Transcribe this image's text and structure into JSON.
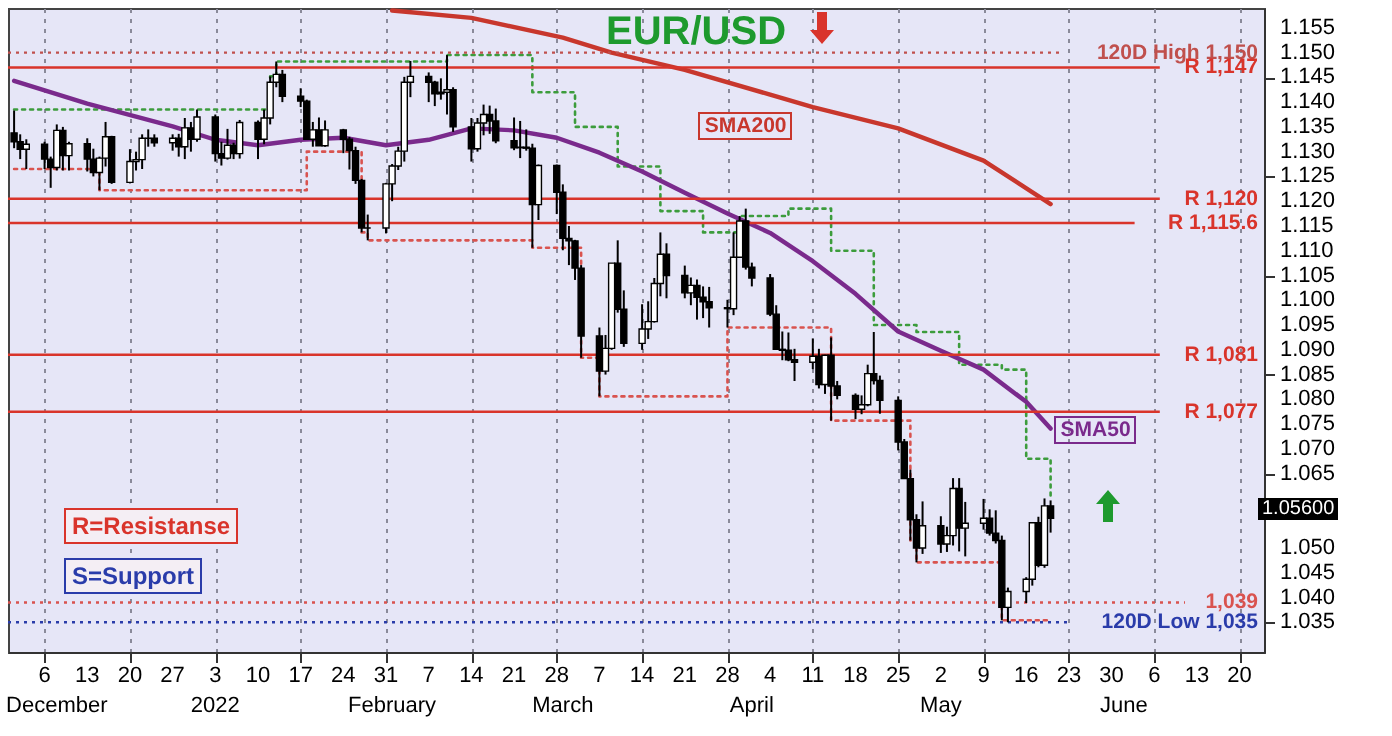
{
  "chart_data": {
    "type": "candlestick",
    "title": "EUR/USD",
    "x": [
      "2021-12-01",
      "2021-12-02",
      "2021-12-03",
      "2021-12-06",
      "2021-12-07",
      "2021-12-08",
      "2021-12-09",
      "2021-12-10",
      "2021-12-13",
      "2021-12-14",
      "2021-12-15",
      "2021-12-16",
      "2021-12-17",
      "2021-12-20",
      "2021-12-21",
      "2021-12-22",
      "2021-12-23",
      "2021-12-24",
      "2021-12-27",
      "2021-12-28",
      "2021-12-29",
      "2021-12-30",
      "2021-12-31",
      "2022-01-03",
      "2022-01-04",
      "2022-01-05",
      "2022-01-06",
      "2022-01-07",
      "2022-01-10",
      "2022-01-11",
      "2022-01-12",
      "2022-01-13",
      "2022-01-14",
      "2022-01-17",
      "2022-01-18",
      "2022-01-19",
      "2022-01-20",
      "2022-01-21",
      "2022-01-24",
      "2022-01-25",
      "2022-01-26",
      "2022-01-27",
      "2022-01-28",
      "2022-01-31",
      "2022-02-01",
      "2022-02-02",
      "2022-02-03",
      "2022-02-04",
      "2022-02-07",
      "2022-02-08",
      "2022-02-09",
      "2022-02-10",
      "2022-02-11",
      "2022-02-14",
      "2022-02-15",
      "2022-02-16",
      "2022-02-17",
      "2022-02-18",
      "2022-02-21",
      "2022-02-22",
      "2022-02-23",
      "2022-02-24",
      "2022-02-25",
      "2022-02-28",
      "2022-03-01",
      "2022-03-02",
      "2022-03-03",
      "2022-03-04",
      "2022-03-07",
      "2022-03-08",
      "2022-03-09",
      "2022-03-10",
      "2022-03-11",
      "2022-03-14",
      "2022-03-15",
      "2022-03-16",
      "2022-03-17",
      "2022-03-18",
      "2022-03-21",
      "2022-03-22",
      "2022-03-23",
      "2022-03-24",
      "2022-03-25",
      "2022-03-28",
      "2022-03-29",
      "2022-03-30",
      "2022-03-31",
      "2022-04-01",
      "2022-04-04",
      "2022-04-05",
      "2022-04-06",
      "2022-04-07",
      "2022-04-08",
      "2022-04-11",
      "2022-04-12",
      "2022-04-13",
      "2022-04-14",
      "2022-04-15",
      "2022-04-18",
      "2022-04-19",
      "2022-04-20",
      "2022-04-21",
      "2022-04-22",
      "2022-04-25",
      "2022-04-26",
      "2022-04-27",
      "2022-04-28",
      "2022-04-29",
      "2022-05-02",
      "2022-05-03",
      "2022-05-04",
      "2022-05-05",
      "2022-05-06",
      "2022-05-09",
      "2022-05-10",
      "2022-05-11",
      "2022-05-12",
      "2022-05-13",
      "2022-05-16",
      "2022-05-17",
      "2022-05-18",
      "2022-05-19",
      "2022-05-20"
    ],
    "ohlc": [
      [
        1.1338,
        1.1383,
        1.1307,
        1.132
      ],
      [
        1.132,
        1.1335,
        1.1285,
        1.1305
      ],
      [
        1.1305,
        1.1325,
        1.1265,
        1.1315
      ],
      [
        1.1315,
        1.132,
        1.1265,
        1.1285
      ],
      [
        1.1285,
        1.129,
        1.1227,
        1.1268
      ],
      [
        1.1268,
        1.1355,
        1.1262,
        1.1343
      ],
      [
        1.1343,
        1.135,
        1.1262,
        1.1292
      ],
      [
        1.1292,
        1.132,
        1.1262,
        1.1316
      ],
      [
        1.1316,
        1.1327,
        1.126,
        1.1285
      ],
      [
        1.1285,
        1.1306,
        1.125,
        1.1258
      ],
      [
        1.1258,
        1.129,
        1.1222,
        1.1287
      ],
      [
        1.1287,
        1.136,
        1.127,
        1.133
      ],
      [
        1.133,
        1.1332,
        1.1235,
        1.1238
      ],
      [
        1.1238,
        1.1305,
        1.1236,
        1.128
      ],
      [
        1.128,
        1.13,
        1.1262,
        1.1284
      ],
      [
        1.1284,
        1.1335,
        1.1265,
        1.1327
      ],
      [
        1.1327,
        1.1345,
        1.131,
        1.1327
      ],
      [
        1.1327,
        1.1335,
        1.131,
        1.1318
      ],
      [
        1.1318,
        1.1335,
        1.1302,
        1.1327
      ],
      [
        1.1327,
        1.1336,
        1.129,
        1.131
      ],
      [
        1.131,
        1.1368,
        1.1285,
        1.1348
      ],
      [
        1.1348,
        1.136,
        1.13,
        1.1325
      ],
      [
        1.1325,
        1.1385,
        1.132,
        1.137
      ],
      [
        1.137,
        1.1375,
        1.128,
        1.1296
      ],
      [
        1.1296,
        1.132,
        1.1272,
        1.1287
      ],
      [
        1.1287,
        1.1346,
        1.1284,
        1.1313
      ],
      [
        1.1313,
        1.1318,
        1.1285,
        1.1296
      ],
      [
        1.1296,
        1.1364,
        1.1286,
        1.1359
      ],
      [
        1.1359,
        1.1363,
        1.1285,
        1.1325
      ],
      [
        1.1325,
        1.1385,
        1.1315,
        1.1368
      ],
      [
        1.1368,
        1.1452,
        1.1355,
        1.144
      ],
      [
        1.144,
        1.1482,
        1.143,
        1.1456
      ],
      [
        1.1456,
        1.1465,
        1.14,
        1.1412
      ],
      [
        1.1412,
        1.1428,
        1.139,
        1.1402
      ],
      [
        1.1402,
        1.1405,
        1.1325,
        1.1325
      ],
      [
        1.1325,
        1.136,
        1.131,
        1.1344
      ],
      [
        1.1344,
        1.1369,
        1.1312,
        1.1312
      ],
      [
        1.1312,
        1.1363,
        1.131,
        1.1344
      ],
      [
        1.1344,
        1.1346,
        1.1297,
        1.1325
      ],
      [
        1.1325,
        1.133,
        1.1264,
        1.1302
      ],
      [
        1.1302,
        1.131,
        1.1235,
        1.1242
      ],
      [
        1.1242,
        1.1245,
        1.1137,
        1.1146
      ],
      [
        1.1146,
        1.1173,
        1.1121,
        1.1146
      ],
      [
        1.1146,
        1.1237,
        1.1135,
        1.1235
      ],
      [
        1.1235,
        1.1275,
        1.12,
        1.1271
      ],
      [
        1.1271,
        1.131,
        1.1263,
        1.1301
      ],
      [
        1.1301,
        1.1451,
        1.128,
        1.144
      ],
      [
        1.144,
        1.1483,
        1.141,
        1.1452
      ],
      [
        1.1452,
        1.146,
        1.14,
        1.144
      ],
      [
        1.144,
        1.1443,
        1.1392,
        1.1417
      ],
      [
        1.1417,
        1.1448,
        1.1405,
        1.142
      ],
      [
        1.142,
        1.1495,
        1.1375,
        1.1425
      ],
      [
        1.1425,
        1.143,
        1.134,
        1.135
      ],
      [
        1.135,
        1.1368,
        1.128,
        1.1306
      ],
      [
        1.1306,
        1.1368,
        1.13,
        1.1358
      ],
      [
        1.1358,
        1.1395,
        1.1333,
        1.1375
      ],
      [
        1.1375,
        1.1393,
        1.1336,
        1.1362
      ],
      [
        1.1362,
        1.1387,
        1.1317,
        1.1322
      ],
      [
        1.1322,
        1.1369,
        1.1303,
        1.1308
      ],
      [
        1.1308,
        1.1362,
        1.1287,
        1.1309
      ],
      [
        1.1309,
        1.1345,
        1.1302,
        1.1307
      ],
      [
        1.1307,
        1.1316,
        1.1106,
        1.1193
      ],
      [
        1.1193,
        1.1274,
        1.1162,
        1.1272
      ],
      [
        1.1272,
        1.1274,
        1.1174,
        1.1218
      ],
      [
        1.1218,
        1.1234,
        1.1101,
        1.1125
      ],
      [
        1.1125,
        1.115,
        1.1071,
        1.112
      ],
      [
        1.112,
        1.1122,
        1.1041,
        1.1065
      ],
      [
        1.1065,
        1.1071,
        1.0884,
        1.0928
      ],
      [
        1.0928,
        1.0945,
        1.0806,
        1.0857
      ],
      [
        1.0857,
        1.093,
        1.085,
        1.0903
      ],
      [
        1.0903,
        1.1075,
        1.09,
        1.1075
      ],
      [
        1.1075,
        1.1121,
        1.0975,
        1.0982
      ],
      [
        1.0982,
        1.102,
        1.0906,
        1.0913
      ],
      [
        1.0913,
        1.0992,
        1.09,
        1.0942
      ],
      [
        1.0942,
        1.0998,
        1.0922,
        1.0957
      ],
      [
        1.0957,
        1.1045,
        1.0955,
        1.1034
      ],
      [
        1.1034,
        1.1137,
        1.1008,
        1.1093
      ],
      [
        1.1093,
        1.1115,
        1.1004,
        1.105
      ],
      [
        1.105,
        1.107,
        1.1004,
        1.1015
      ],
      [
        1.1015,
        1.1046,
        1.099,
        1.103
      ],
      [
        1.103,
        1.1042,
        1.0961,
        1.1006
      ],
      [
        1.1006,
        1.1028,
        1.0964,
        1.0997
      ],
      [
        1.0997,
        1.1027,
        1.0945,
        1.0985
      ],
      [
        1.0985,
        1.1001,
        1.0945,
        1.0983
      ],
      [
        1.0983,
        1.1137,
        1.097,
        1.1087
      ],
      [
        1.1087,
        1.117,
        1.1086,
        1.116
      ],
      [
        1.116,
        1.1185,
        1.1062,
        1.1067
      ],
      [
        1.1067,
        1.1076,
        1.1028,
        1.1045
      ],
      [
        1.1045,
        1.1053,
        1.0968,
        1.0972
      ],
      [
        1.0972,
        1.099,
        1.09,
        1.0901
      ],
      [
        1.0901,
        1.0937,
        1.0879,
        1.0899
      ],
      [
        1.0899,
        1.0935,
        1.0877,
        1.088
      ],
      [
        1.088,
        1.0902,
        1.0837,
        1.0875
      ],
      [
        1.0875,
        1.0923,
        1.0861,
        1.0887
      ],
      [
        1.0887,
        1.0902,
        1.0822,
        1.083
      ],
      [
        1.083,
        1.089,
        1.0811,
        1.0889
      ],
      [
        1.0889,
        1.0925,
        1.0757,
        1.0827
      ],
      [
        1.0827,
        1.0837,
        1.08,
        1.0808
      ],
      [
        1.0808,
        1.0812,
        1.076,
        1.078
      ],
      [
        1.078,
        1.0808,
        1.077,
        1.0789
      ],
      [
        1.0789,
        1.087,
        1.0786,
        1.0852
      ],
      [
        1.0852,
        1.0936,
        1.083,
        1.0838
      ],
      [
        1.0838,
        1.0848,
        1.0771,
        1.0798
      ],
      [
        1.0798,
        1.0806,
        1.0697,
        1.0714
      ],
      [
        1.0714,
        1.072,
        1.064,
        1.064
      ],
      [
        1.064,
        1.0658,
        1.0515,
        1.0557
      ],
      [
        1.0557,
        1.0568,
        1.0471,
        1.05
      ],
      [
        1.05,
        1.0594,
        1.0488,
        1.0545
      ],
      [
        1.0545,
        1.0564,
        1.049,
        1.0508
      ],
      [
        1.0508,
        1.0543,
        1.0492,
        1.0525
      ],
      [
        1.0525,
        1.0641,
        1.0505,
        1.062
      ],
      [
        1.062,
        1.0641,
        1.0493,
        1.054
      ],
      [
        1.054,
        1.0593,
        1.0483,
        1.055
      ],
      [
        1.055,
        1.0599,
        1.0537,
        1.056
      ],
      [
        1.056,
        1.0578,
        1.0525,
        1.053
      ],
      [
        1.053,
        1.0576,
        1.0509,
        1.0515
      ],
      [
        1.0515,
        1.0525,
        1.0354,
        1.038
      ],
      [
        1.038,
        1.042,
        1.035,
        1.0412
      ],
      [
        1.0412,
        1.0441,
        1.0389,
        1.0437
      ],
      [
        1.0437,
        1.0551,
        1.0424,
        1.0551
      ],
      [
        1.0551,
        1.0563,
        1.0461,
        1.0465
      ],
      [
        1.0465,
        1.06,
        1.046,
        1.0585
      ],
      [
        1.0585,
        1.0596,
        1.0531,
        1.056
      ]
    ],
    "xlim": [
      "2021-11-30",
      "2022-06-24"
    ],
    "xticks": [
      {
        "value": "2021-12-06",
        "label": "6"
      },
      {
        "value": "2021-12-13",
        "label": "13"
      },
      {
        "value": "2021-12-20",
        "label": "20"
      },
      {
        "value": "2021-12-27",
        "label": "27"
      },
      {
        "value": "2022-01-03",
        "label": "3"
      },
      {
        "value": "2022-01-10",
        "label": "10"
      },
      {
        "value": "2022-01-17",
        "label": "17"
      },
      {
        "value": "2022-01-24",
        "label": "24"
      },
      {
        "value": "2022-01-31",
        "label": "31"
      },
      {
        "value": "2022-02-07",
        "label": "7"
      },
      {
        "value": "2022-02-14",
        "label": "14"
      },
      {
        "value": "2022-02-21",
        "label": "21"
      },
      {
        "value": "2022-02-28",
        "label": "28"
      },
      {
        "value": "2022-03-07",
        "label": "7"
      },
      {
        "value": "2022-03-14",
        "label": "14"
      },
      {
        "value": "2022-03-21",
        "label": "21"
      },
      {
        "value": "2022-03-28",
        "label": "28"
      },
      {
        "value": "2022-04-04",
        "label": "4"
      },
      {
        "value": "2022-04-11",
        "label": "11"
      },
      {
        "value": "2022-04-18",
        "label": "18"
      },
      {
        "value": "2022-04-25",
        "label": "25"
      },
      {
        "value": "2022-05-02",
        "label": "2"
      },
      {
        "value": "2022-05-09",
        "label": "9"
      },
      {
        "value": "2022-05-16",
        "label": "16"
      },
      {
        "value": "2022-05-23",
        "label": "23"
      },
      {
        "value": "2022-05-30",
        "label": "30"
      },
      {
        "value": "2022-06-06",
        "label": "6"
      },
      {
        "value": "2022-06-13",
        "label": "13"
      },
      {
        "value": "2022-06-20",
        "label": "20"
      }
    ],
    "x2lim": [
      "2021-11-30",
      "2022-06-24"
    ],
    "x2ticks": [
      {
        "value": "2021-12-08",
        "label": "December"
      },
      {
        "value": "2022-01-03",
        "label": "2022"
      },
      {
        "value": "2022-02-01",
        "label": "February"
      },
      {
        "value": "2022-03-01",
        "label": "March"
      },
      {
        "value": "2022-04-01",
        "label": "April"
      },
      {
        "value": "2022-05-02",
        "label": "May"
      },
      {
        "value": "2022-06-01",
        "label": "June"
      }
    ],
    "ylim": [
      1.029,
      1.159
    ],
    "yticks": [
      {
        "value": 1.035,
        "label": "1.035"
      },
      {
        "value": 1.04,
        "label": "1.040"
      },
      {
        "value": 1.045,
        "label": "1.045"
      },
      {
        "value": 1.05,
        "label": "1.050"
      },
      {
        "value": 1.065,
        "label": "1.065"
      },
      {
        "value": 1.07,
        "label": "1.070"
      },
      {
        "value": 1.075,
        "label": "1.075"
      },
      {
        "value": 1.08,
        "label": "1.080"
      },
      {
        "value": 1.085,
        "label": "1.085"
      },
      {
        "value": 1.09,
        "label": "1.090"
      },
      {
        "value": 1.095,
        "label": "1.095"
      },
      {
        "value": 1.1,
        "label": "1.100"
      },
      {
        "value": 1.105,
        "label": "1.105"
      },
      {
        "value": 1.11,
        "label": "1.110"
      },
      {
        "value": 1.115,
        "label": "1.115"
      },
      {
        "value": 1.12,
        "label": "1.120"
      },
      {
        "value": 1.125,
        "label": "1.125"
      },
      {
        "value": 1.13,
        "label": "1.130"
      },
      {
        "value": 1.135,
        "label": "1.135"
      },
      {
        "value": 1.14,
        "label": "1.140"
      },
      {
        "value": 1.145,
        "label": "1.145"
      },
      {
        "value": 1.15,
        "label": "1.150"
      },
      {
        "value": 1.155,
        "label": "1.155"
      }
    ],
    "grid": "x",
    "series": [
      {
        "type": "step",
        "color": "#3c9c3c",
        "line_style": "dotted",
        "x": [
          "2021-12-01",
          "2022-01-12",
          "2022-01-13",
          "2022-02-10",
          "2022-02-24",
          "2022-03-03",
          "2022-03-10",
          "2022-03-17",
          "2022-03-24",
          "2022-03-30",
          "2022-04-07",
          "2022-04-14",
          "2022-04-21",
          "2022-04-28",
          "2022-05-05",
          "2022-05-12",
          "2022-05-16",
          "2022-05-20"
        ],
        "values": [
          1.1385,
          1.1452,
          1.1482,
          1.1495,
          1.142,
          1.135,
          1.127,
          1.118,
          1.1137,
          1.117,
          1.1185,
          1.11,
          1.095,
          1.0936,
          1.087,
          1.086,
          1.068,
          1.06
        ]
      },
      {
        "type": "step",
        "color": "#d9534f",
        "line_style": "dotted",
        "x": [
          "2021-12-01",
          "2021-12-15",
          "2022-01-18",
          "2022-01-27",
          "2022-01-28",
          "2022-02-24",
          "2022-03-04",
          "2022-03-07",
          "2022-03-28",
          "2022-04-14",
          "2022-04-27",
          "2022-04-28",
          "2022-05-12",
          "2022-05-20"
        ],
        "values": [
          1.1265,
          1.1222,
          1.13,
          1.1137,
          1.1121,
          1.1106,
          1.0884,
          1.0806,
          1.0945,
          1.0757,
          1.0515,
          1.0471,
          1.0354,
          1.0354
        ]
      },
      {
        "name": "SMA50",
        "type": "line",
        "color": "#7a2a8c",
        "x": [
          "2021-12-01",
          "2021-12-13",
          "2021-12-27",
          "2022-01-03",
          "2022-01-10",
          "2022-01-17",
          "2022-01-24",
          "2022-01-31",
          "2022-02-07",
          "2022-02-14",
          "2022-02-21",
          "2022-02-28",
          "2022-03-07",
          "2022-03-14",
          "2022-03-21",
          "2022-03-28",
          "2022-04-04",
          "2022-04-11",
          "2022-04-18",
          "2022-04-25",
          "2022-05-02",
          "2022-05-09",
          "2022-05-16",
          "2022-05-20"
        ],
        "values": [
          1.1443,
          1.1397,
          1.1351,
          1.1324,
          1.1313,
          1.1324,
          1.1328,
          1.1313,
          1.1324,
          1.1347,
          1.1343,
          1.1328,
          1.1298,
          1.126,
          1.1217,
          1.1175,
          1.1136,
          1.1079,
          1.1013,
          1.0937,
          1.0898,
          1.086,
          1.0795,
          1.0741
        ]
      },
      {
        "name": "SMA200",
        "type": "line",
        "color": "#c8372d",
        "x": [
          "2022-02-01",
          "2022-02-14",
          "2022-03-01",
          "2022-03-09",
          "2022-03-21",
          "2022-04-04",
          "2022-04-11",
          "2022-04-25",
          "2022-05-09",
          "2022-05-20"
        ],
        "values": [
          1.1585,
          1.157,
          1.153,
          1.15,
          1.1465,
          1.1415,
          1.139,
          1.1347,
          1.1282,
          1.1194
        ]
      }
    ],
    "ref_lines": [
      {
        "axis": "y",
        "value": 1.15,
        "label": "120D High 1,150",
        "color": "#c0504d",
        "line_style": "dotted"
      },
      {
        "axis": "y",
        "value": 1.147,
        "label": "R 1,147",
        "color": "#d9342b"
      },
      {
        "axis": "y",
        "value": 1.1205,
        "label": "R 1,120",
        "color": "#d9342b"
      },
      {
        "axis": "y",
        "value": 1.1156,
        "label": "R 1,115.6",
        "color": "#d9342b"
      },
      {
        "axis": "y",
        "value": 1.089,
        "label": "R 1,081",
        "color": "#d9342b"
      },
      {
        "axis": "y",
        "value": 1.0775,
        "label": "R 1,077",
        "color": "#d9342b"
      },
      {
        "axis": "y",
        "value": 1.039,
        "label": "1,039",
        "color": "#d9534f",
        "line_style": "dotted"
      },
      {
        "axis": "y",
        "value": 1.035,
        "label": "120D Low 1,035",
        "color": "#2a3caa",
        "line_style": "dotted"
      }
    ],
    "annotations": [
      "R=Resistanse",
      "S=Support",
      "1.05600"
    ]
  }
}
